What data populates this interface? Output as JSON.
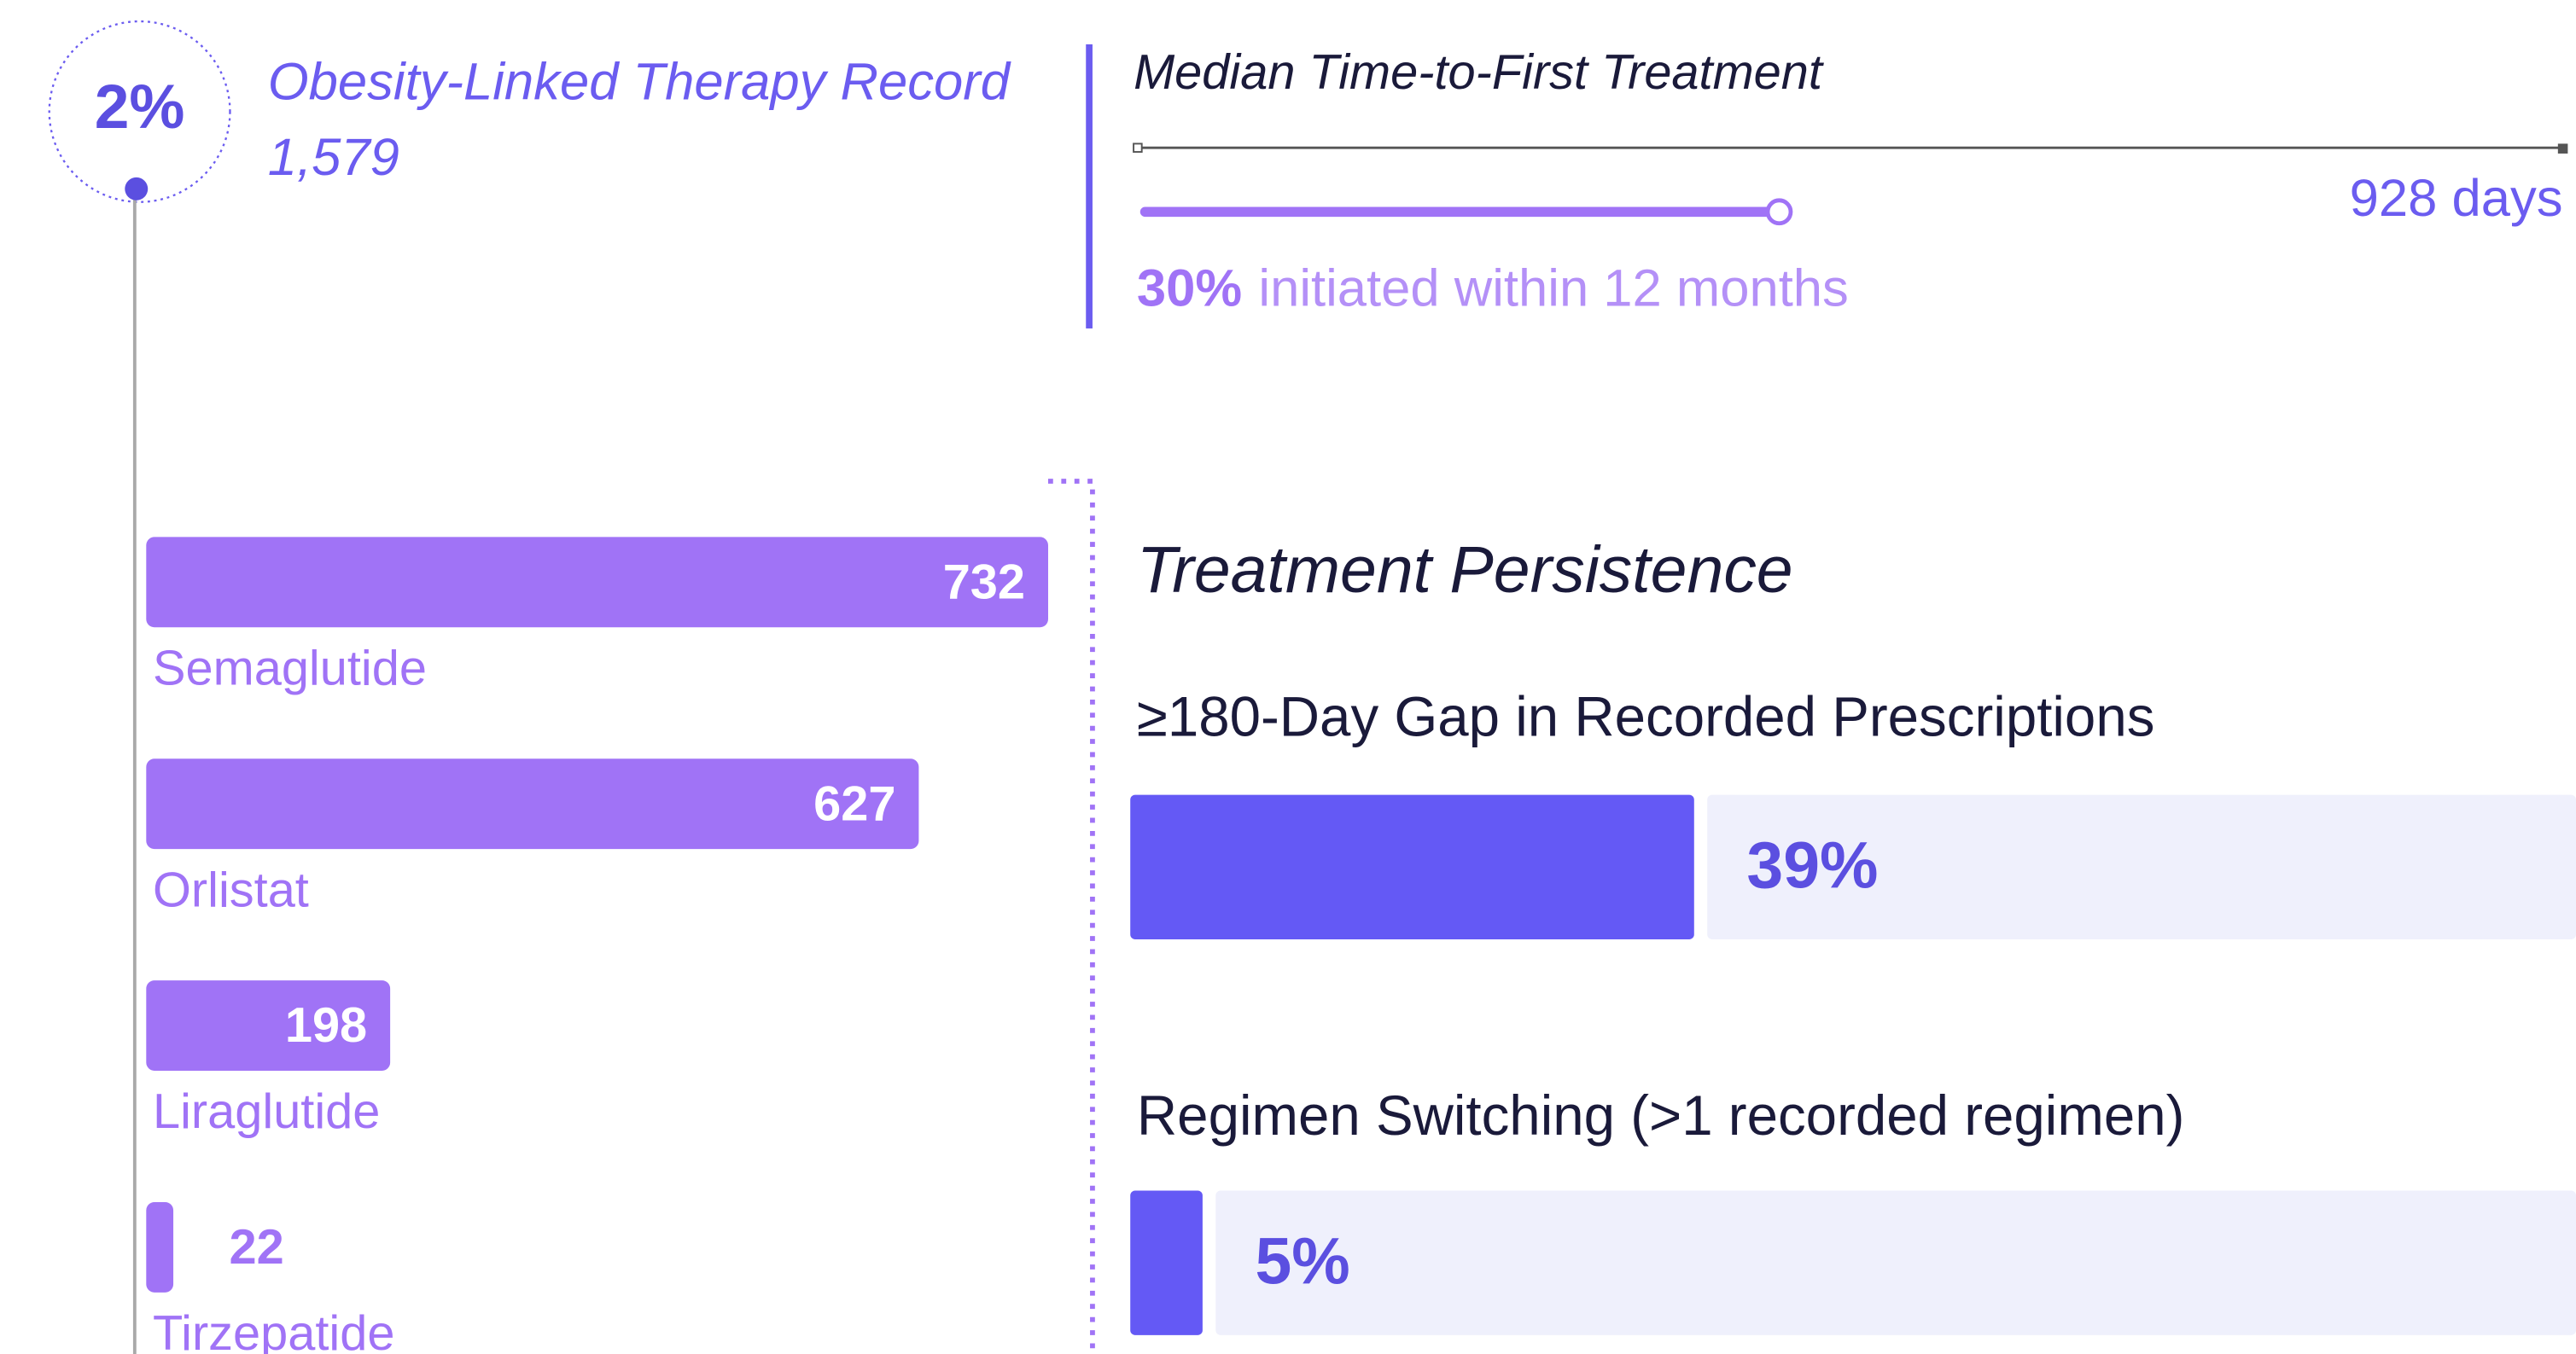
{
  "header": {
    "percent": "2%",
    "title": "Obesity-Linked Therapy Record",
    "count": "1,579"
  },
  "median": {
    "title": "Median Time-to-First Treatment",
    "value_label": "928 days",
    "share": "30%",
    "share_text": "initiated within 12 months"
  },
  "chart_data": {
    "type": "bar",
    "orientation": "horizontal",
    "categories": [
      "Semaglutide",
      "Orlistat",
      "Liraglutide",
      "Tirzepatide"
    ],
    "values": [
      732,
      627,
      198,
      22
    ],
    "color": "#a073f6"
  },
  "persistence": {
    "title": "Treatment Persistence",
    "color": "#6459f5",
    "items": [
      {
        "label": "≥180-Day Gap in Recorded Prescriptions",
        "value": 39,
        "value_label": "39%"
      },
      {
        "label": "Regimen Switching (>1 recorded regimen)",
        "value": 5,
        "value_label": "5%"
      }
    ]
  }
}
